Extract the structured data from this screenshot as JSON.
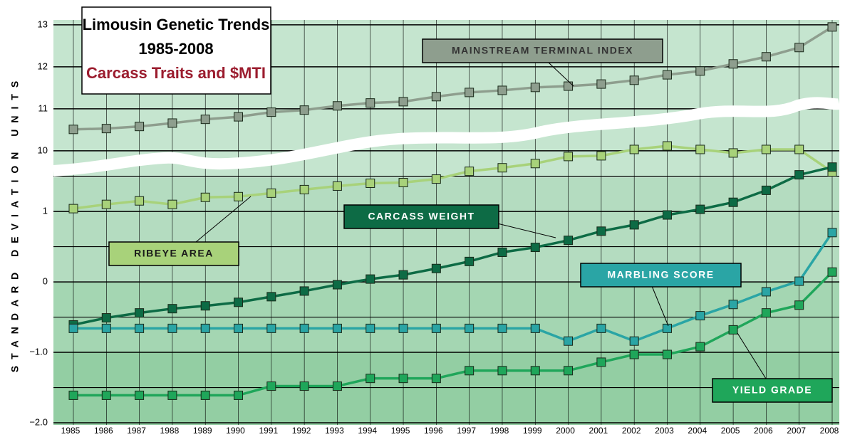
{
  "chart_data": {
    "type": "line",
    "title": [
      "Limousin Genetic Trends",
      "1985-2008"
    ],
    "subtitle": "Carcass Traits and $MTI",
    "ylabel": "STANDARD DEVIATION UNITS",
    "categories": [
      "1985",
      "1986",
      "1987",
      "1988",
      "1989",
      "1990",
      "1991",
      "1992",
      "1993",
      "1994",
      "1995",
      "1996",
      "1997",
      "1998",
      "1999",
      "2000",
      "2001",
      "2002",
      "2003",
      "2004",
      "2005",
      "2006",
      "2007",
      "2008"
    ],
    "ylim": [
      -2.03,
      1.9
    ],
    "yticks": [
      {
        "value": -2,
        "label": "−2.0"
      },
      {
        "value": -1,
        "label": "−1.0"
      },
      0,
      1
    ],
    "minor_yticks": [
      -1.5,
      -0.5,
      0.5,
      1.5
    ],
    "y2lim": [
      9.5,
      13.1
    ],
    "y2ticks": [
      10,
      11,
      12,
      13
    ],
    "grid": true,
    "series": [
      {
        "name": "MAINSTREAM TERMINAL INDEX",
        "color": "#8e9e8e",
        "text_color": "#333333",
        "axis": "y2",
        "values": [
          10.51,
          10.53,
          10.58,
          10.66,
          10.75,
          10.81,
          10.92,
          10.97,
          11.07,
          11.14,
          11.17,
          11.29,
          11.39,
          11.44,
          11.51,
          11.54,
          11.59,
          11.68,
          11.81,
          11.9,
          12.07,
          12.24,
          12.46,
          12.95
        ]
      },
      {
        "name": "RIBEYE AREA",
        "color": "#a8d27a",
        "text_color": "#1a1a1a",
        "values": [
          1.04,
          1.1,
          1.15,
          1.1,
          1.2,
          1.21,
          1.26,
          1.31,
          1.36,
          1.4,
          1.41,
          1.46,
          1.57,
          1.62,
          1.68,
          1.78,
          1.79,
          1.88,
          1.93,
          1.88,
          1.83,
          1.88,
          1.88,
          1.56
        ]
      },
      {
        "name": "CARCASS WEIGHT",
        "color": "#0d6b45",
        "text_color": "#ffffff",
        "values": [
          -0.61,
          -0.51,
          -0.44,
          -0.38,
          -0.34,
          -0.29,
          -0.21,
          -0.13,
          -0.04,
          0.04,
          0.1,
          0.19,
          0.29,
          0.42,
          0.49,
          0.59,
          0.72,
          0.81,
          0.95,
          1.03,
          1.13,
          1.3,
          1.52,
          1.63
        ]
      },
      {
        "name": "MARBLING SCORE",
        "color": "#2aa5a5",
        "text_color": "#ffffff",
        "values": [
          -0.66,
          -0.66,
          -0.66,
          -0.66,
          -0.66,
          -0.66,
          -0.66,
          -0.66,
          -0.66,
          -0.66,
          -0.66,
          -0.66,
          -0.66,
          -0.66,
          -0.66,
          -0.84,
          -0.66,
          -0.84,
          -0.66,
          -0.48,
          -0.32,
          -0.14,
          0.01,
          0.7
        ]
      },
      {
        "name": "YIELD GRADE",
        "color": "#1fa65a",
        "text_color": "#ffffff",
        "values": [
          -1.61,
          -1.61,
          -1.61,
          -1.61,
          -1.61,
          -1.61,
          -1.48,
          -1.48,
          -1.48,
          -1.37,
          -1.37,
          -1.37,
          -1.26,
          -1.26,
          -1.26,
          -1.26,
          -1.14,
          -1.03,
          -1.03,
          -0.92,
          -0.68,
          -0.44,
          -0.33,
          0.14
        ]
      }
    ]
  }
}
